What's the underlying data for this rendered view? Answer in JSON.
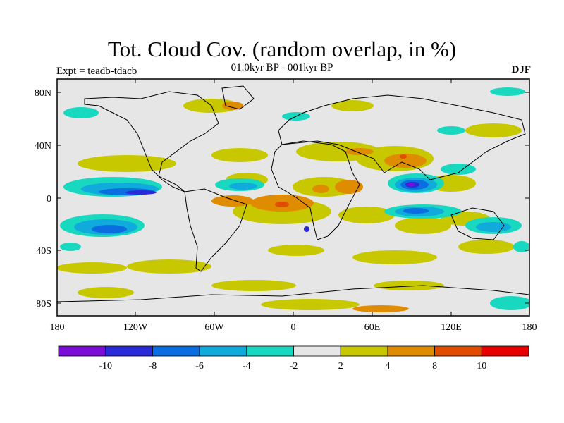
{
  "title": "Tot. Cloud Cov. (random overlap, in %)",
  "subtitle": "01.0kyr BP - 001kyr BP",
  "experiment": "Expt = teadb-tdacb",
  "season": "DJF",
  "lat_labels": [
    "80N",
    "40N",
    "0",
    "40S",
    "80S"
  ],
  "lon_labels": [
    "180",
    "120W",
    "60W",
    "0",
    "60E",
    "120E",
    "180"
  ],
  "colorbar": {
    "labels": [
      "-10",
      "-8",
      "-6",
      "-4",
      "-2",
      "2",
      "4",
      "8",
      "10"
    ],
    "colors": [
      "#7a0ed6",
      "#2a2ad8",
      "#0a6ee0",
      "#10aadc",
      "#18d8c0",
      "#e6e6e6",
      "#c8c800",
      "#e08c00",
      "#e04c00",
      "#e80000"
    ]
  }
}
